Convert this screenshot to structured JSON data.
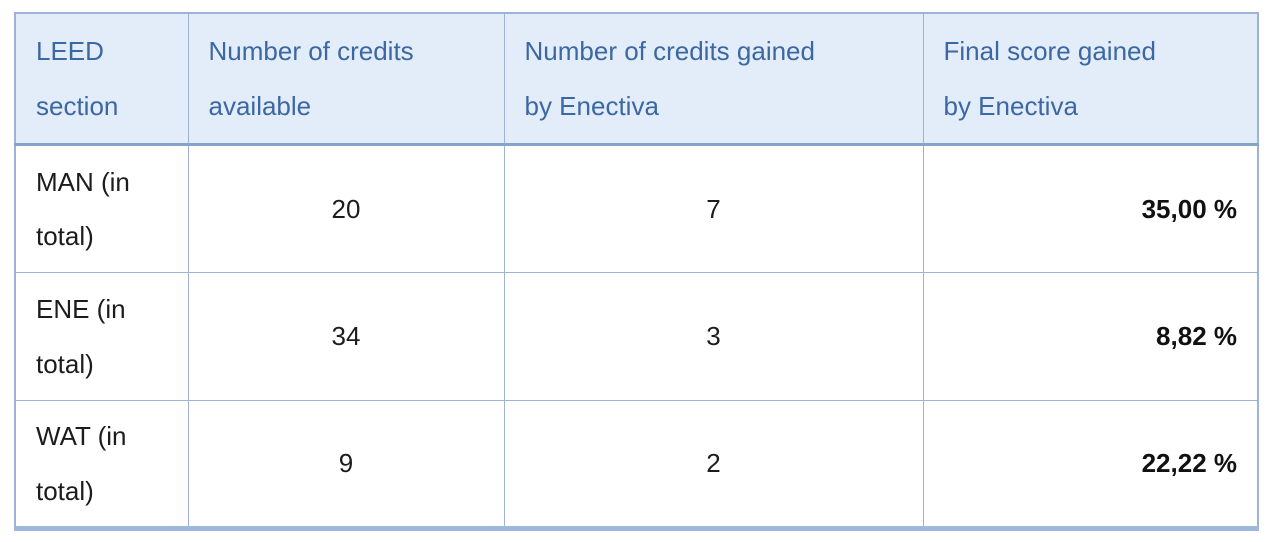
{
  "table": {
    "headers": [
      {
        "line1": "LEED",
        "line2": "section"
      },
      {
        "line1": "Number of credits",
        "line2": "available"
      },
      {
        "line1": "Number of credits gained",
        "line2": "by Enectiva"
      },
      {
        "line1": "Final score gained",
        "line2": "by Enectiva"
      }
    ],
    "rows": [
      {
        "section": "MAN (in total)",
        "credits_available": "20",
        "credits_gained": "7",
        "final_score": "35,00 %"
      },
      {
        "section": "ENE (in total)",
        "credits_available": "34",
        "credits_gained": "3",
        "final_score": "8,82 %"
      },
      {
        "section": "WAT (in total)",
        "credits_available": "9",
        "credits_gained": "2",
        "final_score": "22,22 %"
      }
    ]
  },
  "colors": {
    "header_background": "#e3edf9",
    "header_text": "#3b67a2",
    "border": "#9db4d6",
    "header_bottom_border": "#84a3cd",
    "bottom_border": "#9cb8dd",
    "body_text": "#1c1c1c"
  }
}
